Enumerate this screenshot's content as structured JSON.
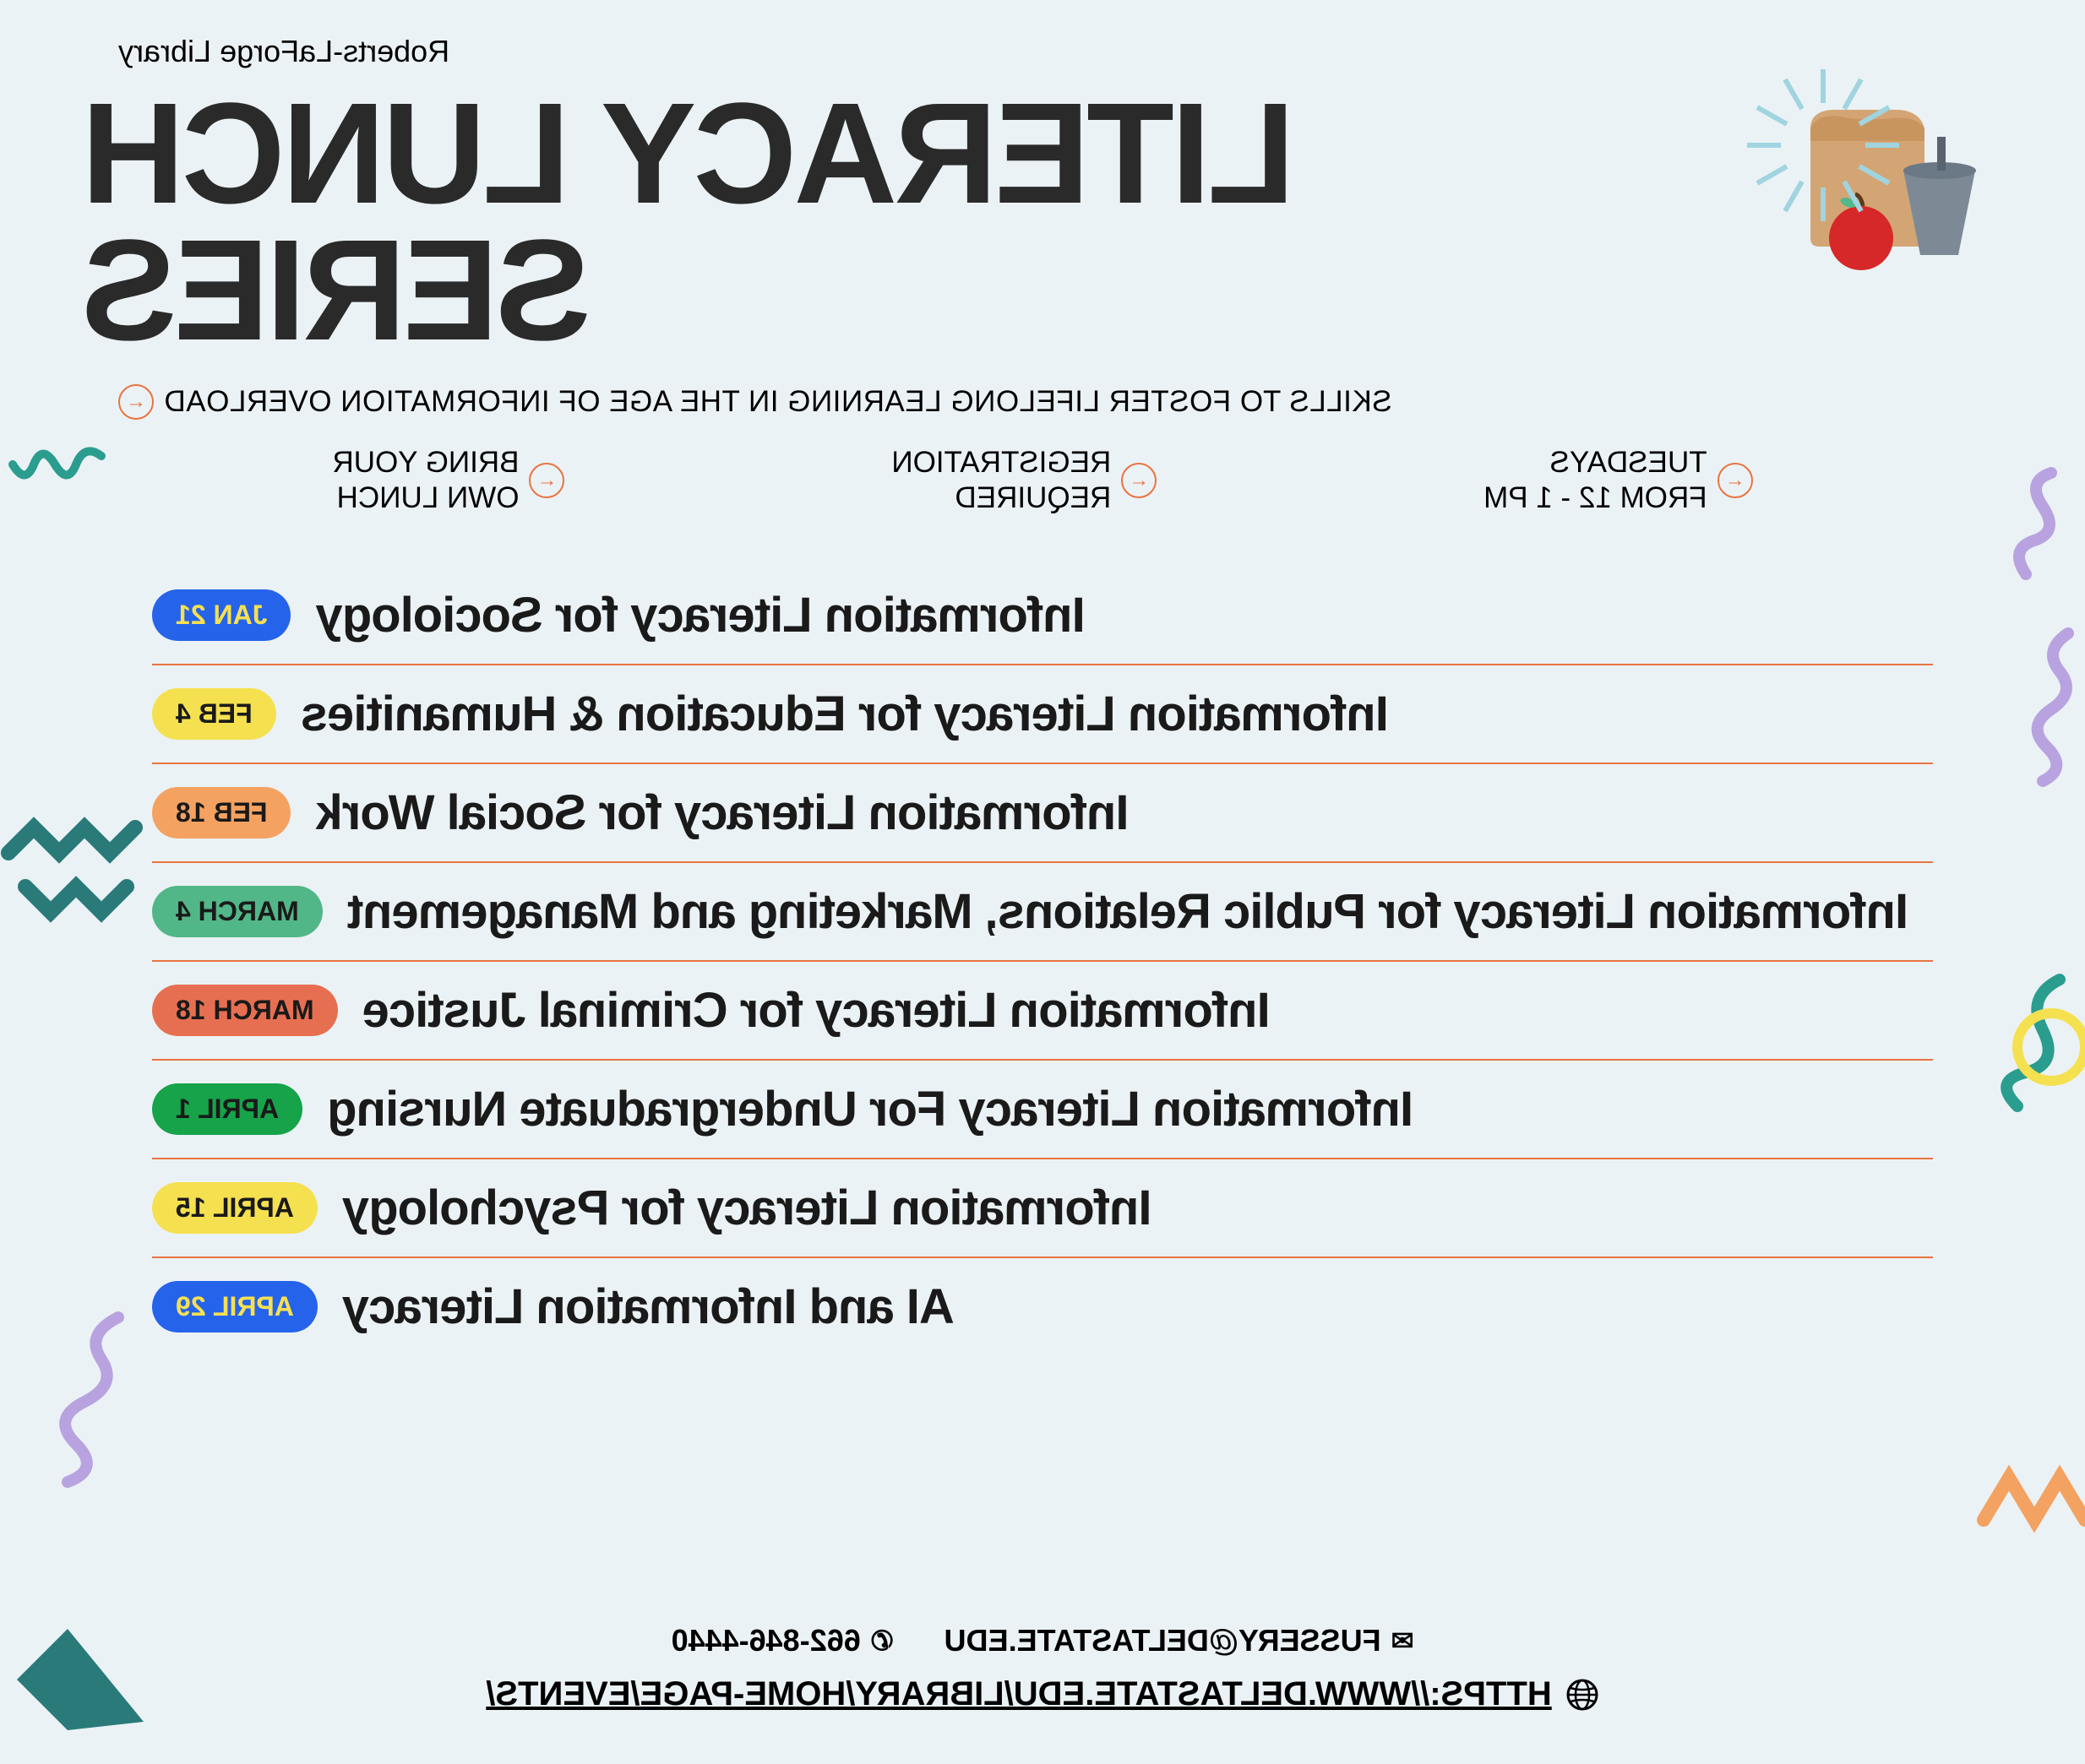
{
  "header": {
    "organization": "Roberts-LaForge Library",
    "title": "LITERACY LUNCH SERIES",
    "subtitle": "SKILLS TO FOSTER LIFELONG LEARNING IN THE AGE OF INFORMATION OVERLOAD",
    "info": [
      {
        "line1": "TUESDAYS",
        "line2": "FROM 12 - 1 PM"
      },
      {
        "line1": "REGISTRATION",
        "line2": "REQUIRED"
      },
      {
        "line1": "BRING YOUR",
        "line2": "OWN LUNCH"
      }
    ]
  },
  "colors": {
    "background": "#ebf2f5",
    "title_text": "#2a2a2a",
    "divider": "#e87440",
    "arrow": "#e87440",
    "decorations": {
      "teal": "#2a9d8f",
      "purple": "#b8a3e0",
      "orange": "#f4a261",
      "green": "#52b788",
      "sunburst": "#a0d4e0"
    }
  },
  "events": [
    {
      "date": "JAN 21",
      "title": "Information Literacy for Sociology",
      "pill_bg": "#2563eb",
      "pill_text": "#f5e050"
    },
    {
      "date": "FEB 4",
      "title": "Information Literacy for Education & Humanities",
      "pill_bg": "#f5e050",
      "pill_text": "#1a1a1a"
    },
    {
      "date": "FEB 18",
      "title": "Information Literacy for Social Work",
      "pill_bg": "#f4a261",
      "pill_text": "#1a1a1a"
    },
    {
      "date": "MARCH 4",
      "title": "Information Literacy for Public Relations, Marketing and Management",
      "pill_bg": "#52b788",
      "pill_text": "#1a1a1a"
    },
    {
      "date": "MARCH 18",
      "title": "Information Literacy for Criminal Justice",
      "pill_bg": "#e76f51",
      "pill_text": "#1a1a1a"
    },
    {
      "date": "APRIL 1",
      "title": "Information Literacy For Undergraduate Nursing",
      "pill_bg": "#16a34a",
      "pill_text": "#1a1a1a"
    },
    {
      "date": "APRIL 15",
      "title": "Information Literacy for Psychology",
      "pill_bg": "#f5e050",
      "pill_text": "#1a1a1a"
    },
    {
      "date": "APRIL 29",
      "title": "AI and Information Literacy",
      "pill_bg": "#2563eb",
      "pill_text": "#f5e050"
    }
  ],
  "footer": {
    "email": "FUSSERY@DELTASTATE.EDU",
    "phone": "662-846-4440",
    "url": "HTTPS://WWW.DELTASTATE.EDU/LIBRARY/HOME-PAGE/EVENTS/"
  }
}
